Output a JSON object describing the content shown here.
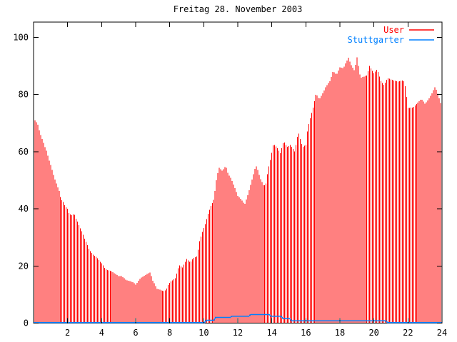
{
  "chart_data": {
    "type": "bar",
    "title": "Freitag 28. November 2003",
    "xlabel": "",
    "ylabel": "",
    "xlim": [
      0,
      24
    ],
    "ylim": [
      0,
      105
    ],
    "xticks": [
      2,
      4,
      6,
      8,
      10,
      12,
      14,
      16,
      18,
      20,
      22,
      24
    ],
    "yticks": [
      0,
      20,
      40,
      60,
      80,
      100
    ],
    "grid": false,
    "legend_position": "top-right-inside",
    "series": [
      {
        "name": "User",
        "color": "#ff0000",
        "style": "impulses",
        "resolution_minutes": 5,
        "keypoints": [
          [
            0,
            71
          ],
          [
            0.1,
            71
          ],
          [
            0.25,
            69.5
          ],
          [
            0.35,
            67
          ],
          [
            0.5,
            64.5
          ],
          [
            0.62,
            62.4
          ],
          [
            0.75,
            60.3
          ],
          [
            0.87,
            57.8
          ],
          [
            1.0,
            55.3
          ],
          [
            1.12,
            52.8
          ],
          [
            1.25,
            50.3
          ],
          [
            1.37,
            48.3
          ],
          [
            1.5,
            46.2
          ],
          [
            1.62,
            43.3
          ],
          [
            1.75,
            42.4
          ],
          [
            1.87,
            40.8
          ],
          [
            2.0,
            40
          ],
          [
            2.1,
            38.3
          ],
          [
            2.25,
            37.8
          ],
          [
            2.4,
            38.2
          ],
          [
            2.5,
            36.5
          ],
          [
            2.6,
            35.3
          ],
          [
            2.7,
            33.8
          ],
          [
            2.85,
            32
          ],
          [
            3.0,
            29.5
          ],
          [
            3.15,
            27.5
          ],
          [
            3.3,
            25.4
          ],
          [
            3.5,
            24
          ],
          [
            3.7,
            23
          ],
          [
            3.85,
            21.9
          ],
          [
            4.05,
            20.6
          ],
          [
            4.2,
            18.9
          ],
          [
            4.4,
            18.5
          ],
          [
            4.6,
            18.1
          ],
          [
            4.8,
            17.3
          ],
          [
            5.0,
            16.4
          ],
          [
            5.2,
            16.4
          ],
          [
            5.45,
            15.1
          ],
          [
            5.65,
            14.7
          ],
          [
            5.85,
            14.3
          ],
          [
            6.0,
            13.5
          ],
          [
            6.3,
            15.8
          ],
          [
            6.5,
            16.6
          ],
          [
            6.85,
            17.8
          ],
          [
            7.0,
            14.9
          ],
          [
            7.25,
            12.0
          ],
          [
            7.45,
            11.6
          ],
          [
            7.65,
            11.2
          ],
          [
            7.8,
            11.6
          ],
          [
            7.95,
            13.8
          ],
          [
            8.15,
            14.9
          ],
          [
            8.35,
            15.8
          ],
          [
            8.55,
            20.3
          ],
          [
            8.75,
            19.5
          ],
          [
            9.0,
            22.4
          ],
          [
            9.2,
            21.2
          ],
          [
            9.4,
            22.8
          ],
          [
            9.6,
            23.3
          ],
          [
            9.75,
            28.7
          ],
          [
            9.9,
            31.6
          ],
          [
            10.1,
            35
          ],
          [
            10.25,
            38.3
          ],
          [
            10.4,
            40.8
          ],
          [
            10.6,
            43.3
          ],
          [
            10.75,
            50
          ],
          [
            10.9,
            54.5
          ],
          [
            11.1,
            53.3
          ],
          [
            11.3,
            55
          ],
          [
            11.45,
            52
          ],
          [
            11.6,
            50.8
          ],
          [
            11.8,
            47.8
          ],
          [
            12.0,
            44.5
          ],
          [
            12.2,
            43.3
          ],
          [
            12.4,
            41.5
          ],
          [
            12.6,
            45
          ],
          [
            12.8,
            49.5
          ],
          [
            13.0,
            54
          ],
          [
            13.1,
            55
          ],
          [
            13.3,
            50.8
          ],
          [
            13.5,
            48.3
          ],
          [
            13.65,
            48.3
          ],
          [
            13.8,
            54
          ],
          [
            13.95,
            58
          ],
          [
            14.1,
            62.8
          ],
          [
            14.3,
            61.5
          ],
          [
            14.5,
            59.5
          ],
          [
            14.7,
            63.7
          ],
          [
            14.9,
            61.6
          ],
          [
            15.1,
            62.4
          ],
          [
            15.35,
            60
          ],
          [
            15.55,
            67
          ],
          [
            15.8,
            61.6
          ],
          [
            16.0,
            62.4
          ],
          [
            16.1,
            68
          ],
          [
            16.25,
            71.7
          ],
          [
            16.4,
            75
          ],
          [
            16.6,
            80.4
          ],
          [
            16.8,
            78.3
          ],
          [
            17.0,
            80.4
          ],
          [
            17.2,
            82.9
          ],
          [
            17.45,
            85
          ],
          [
            17.6,
            88.3
          ],
          [
            17.8,
            86.9
          ],
          [
            18.0,
            89.5
          ],
          [
            18.2,
            89.2
          ],
          [
            18.5,
            92.9
          ],
          [
            18.65,
            90.4
          ],
          [
            18.85,
            88.3
          ],
          [
            19.0,
            93
          ],
          [
            19.2,
            85.8
          ],
          [
            19.4,
            86.3
          ],
          [
            19.6,
            86.7
          ],
          [
            19.75,
            90
          ],
          [
            20.0,
            87.5
          ],
          [
            20.2,
            88.9
          ],
          [
            20.4,
            84.9
          ],
          [
            20.6,
            83.3
          ],
          [
            20.8,
            85.8
          ],
          [
            21.0,
            85.3
          ],
          [
            21.2,
            84.9
          ],
          [
            21.4,
            84.5
          ],
          [
            21.65,
            84.9
          ],
          [
            21.8,
            84.5
          ],
          [
            22.0,
            75.3
          ],
          [
            22.3,
            75.5
          ],
          [
            22.55,
            77
          ],
          [
            22.8,
            78.5
          ],
          [
            23.0,
            76.8
          ],
          [
            23.2,
            78.1
          ],
          [
            23.4,
            80.2
          ],
          [
            23.6,
            82.8
          ],
          [
            23.8,
            79.4
          ],
          [
            24.0,
            75.3
          ]
        ]
      },
      {
        "name": "Stuttgarter",
        "color": "#0080ff",
        "style": "steps",
        "keypoints": [
          [
            0,
            0.2
          ],
          [
            10.05,
            0.2
          ],
          [
            10.15,
            1
          ],
          [
            10.6,
            1
          ],
          [
            10.7,
            2
          ],
          [
            11.55,
            2
          ],
          [
            11.65,
            2.4
          ],
          [
            12.65,
            2.4
          ],
          [
            12.75,
            3
          ],
          [
            13.85,
            3
          ],
          [
            13.95,
            2.4
          ],
          [
            14.55,
            2.4
          ],
          [
            14.65,
            1.6
          ],
          [
            15.05,
            1.6
          ],
          [
            15.15,
            0.8
          ],
          [
            20.7,
            0.8
          ],
          [
            20.8,
            0.2
          ],
          [
            24,
            0.2
          ]
        ]
      }
    ]
  },
  "colors": {
    "frame": "#000000",
    "background": "#ffffff",
    "text": "#000000"
  }
}
